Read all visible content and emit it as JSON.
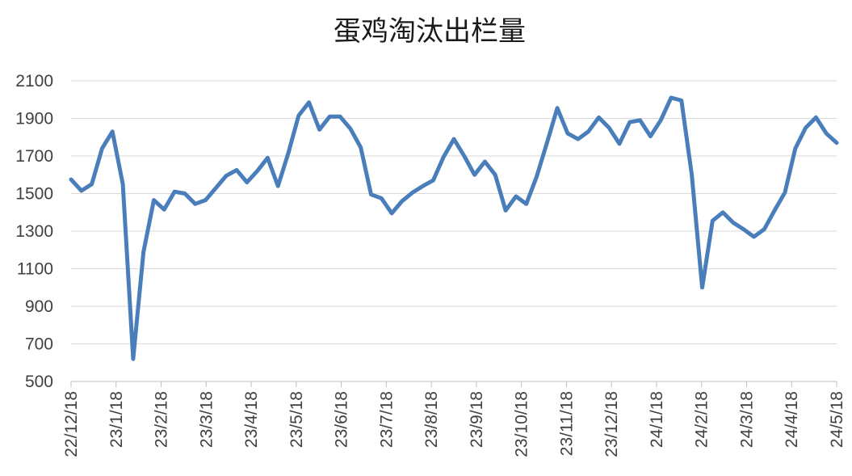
{
  "chart_data": {
    "type": "line",
    "title": "蛋鸡淘汰出栏量",
    "xlabel": "",
    "ylabel": "",
    "ylim": [
      500,
      2100
    ],
    "yticks": [
      500,
      700,
      900,
      1100,
      1300,
      1500,
      1700,
      1900,
      2100
    ],
    "xtick_labels": [
      "22/12/18",
      "23/1/18",
      "23/2/18",
      "23/3/18",
      "23/4/18",
      "23/5/18",
      "23/6/18",
      "23/7/18",
      "23/8/18",
      "23/9/18",
      "23/10/18",
      "23/11/18",
      "23/12/18",
      "24/1/18",
      "24/2/18",
      "24/3/18",
      "24/4/18",
      "24/5/18"
    ],
    "grid": true,
    "legend": "none",
    "series": [
      {
        "color": "#4a7ebb",
        "values": [
          1575,
          1515,
          1550,
          1740,
          1830,
          1550,
          620,
          1190,
          1465,
          1415,
          1510,
          1500,
          1445,
          1465,
          1530,
          1595,
          1625,
          1560,
          1620,
          1690,
          1540,
          1715,
          1915,
          1985,
          1840,
          1910,
          1910,
          1845,
          1745,
          1495,
          1475,
          1395,
          1460,
          1505,
          1540,
          1570,
          1695,
          1790,
          1700,
          1600,
          1670,
          1600,
          1410,
          1485,
          1445,
          1590,
          1770,
          1955,
          1820,
          1790,
          1830,
          1905,
          1850,
          1765,
          1880,
          1890,
          1805,
          1890,
          2010,
          1995,
          1600,
          1000,
          1355,
          1400,
          1345,
          1310,
          1270,
          1310,
          1410,
          1505,
          1740,
          1850,
          1905,
          1820,
          1770
        ]
      }
    ]
  }
}
